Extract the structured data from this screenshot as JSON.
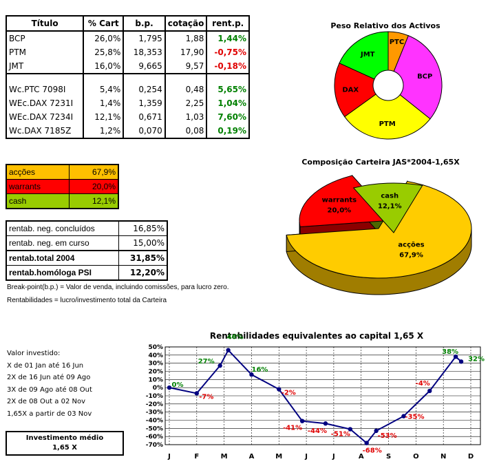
{
  "positions_table": {
    "headers": [
      "Título",
      "% Cart",
      "b.p.",
      "cotação",
      "rent.p."
    ],
    "rows": [
      {
        "titulo": "BCP",
        "cart": "26,0%",
        "bp": "1,795",
        "cot": "1,88",
        "rent": "1,44%",
        "sign": "pos"
      },
      {
        "titulo": "PTM",
        "cart": "25,8%",
        "bp": "18,353",
        "cot": "17,90",
        "rent": "-0,75%",
        "sign": "neg"
      },
      {
        "titulo": "JMT",
        "cart": "16,0%",
        "bp": "9,665",
        "cot": "9,57",
        "rent": "-0,18%",
        "sign": "neg"
      },
      {
        "titulo": "Wc.PTC 7098I",
        "cart": "5,4%",
        "bp": "0,254",
        "cot": "0,48",
        "rent": "5,65%",
        "sign": "pos"
      },
      {
        "titulo": "WEc.DAX 7231I",
        "cart": "1,4%",
        "bp": "1,359",
        "cot": "2,25",
        "rent": "1,04%",
        "sign": "pos"
      },
      {
        "titulo": "WEc.DAX 7234I",
        "cart": "12,1%",
        "bp": "0,671",
        "cot": "1,03",
        "rent": "7,60%",
        "sign": "pos"
      },
      {
        "titulo": "Wc.DAX 7185Z",
        "cart": "1,2%",
        "bp": "0,070",
        "cot": "0,08",
        "rent": "0,19%",
        "sign": "pos"
      }
    ]
  },
  "allocation_table": {
    "rows": [
      {
        "label": "acções",
        "value": "67,9%",
        "color": "#ffc000"
      },
      {
        "label": "warrants",
        "value": "20,0%",
        "color": "#ff0000"
      },
      {
        "label": "cash",
        "value": "12,1%",
        "color": "#99cc00"
      }
    ]
  },
  "returns_table": {
    "rows": [
      {
        "label": "rentab. neg. concluídos",
        "value": "16,85%",
        "bold": false
      },
      {
        "label": "rentab. neg. em curso",
        "value": "15,00%",
        "bold": false
      },
      {
        "label": "rentab.total 2004",
        "value": "31,85%",
        "bold": true
      },
      {
        "label": "rentab.homóloga PSI",
        "value": "12,20%",
        "bold": true
      }
    ]
  },
  "notes": {
    "breakpoint": "Break-point(b.p.) = Valor de venda, incluindo comissões, para lucro zero.",
    "rentabilidades": "Rentabilidades = lucro/investimento total da Carteira"
  },
  "investment_info": {
    "title": "Valor investido:",
    "lines": [
      "X de 01 Jan até 16 Jun",
      "2X de 16 Jun até 09 Ago",
      "3X de 09 Ago até 08 Out",
      "2X de 08 Out a 02 Nov",
      "1,65X a partir de 03 Nov"
    ],
    "box_title": "Investimento médio",
    "box_value": "1,65 X"
  },
  "chart_data": [
    {
      "type": "pie",
      "title": "Peso Relativo dos Activos",
      "donut": true,
      "slices": [
        {
          "label": "PTC",
          "value": 5.4,
          "color": "#ff9900"
        },
        {
          "label": "BCP",
          "value": 26.0,
          "color": "#ff33ff"
        },
        {
          "label": "PTM",
          "value": 25.8,
          "color": "#ffff00"
        },
        {
          "label": "DAX",
          "value": 14.7,
          "color": "#ff0000"
        },
        {
          "label": "JMT",
          "value": 16.0,
          "color": "#00ff00"
        }
      ]
    },
    {
      "type": "pie",
      "title": "Composição Carteira JAS*2004-1,65X",
      "three_d": true,
      "slices": [
        {
          "label": "acções",
          "value": 67.9,
          "display": "67,9%",
          "color": "#ffcc00",
          "side": "#a07d00"
        },
        {
          "label": "warrants",
          "value": 20.0,
          "display": "20,0%",
          "color": "#ff0000",
          "side": "#8b0000"
        },
        {
          "label": "cash",
          "value": 12.1,
          "display": "12,1%",
          "color": "#99cc00",
          "side": "#4d6600"
        }
      ]
    },
    {
      "type": "line",
      "title": "Rentabilidades equivalentes ao capital 1,65 X",
      "x_labels": [
        "J",
        "F",
        "M",
        "A",
        "M",
        "J",
        "J",
        "A",
        "S",
        "O",
        "N",
        "D"
      ],
      "ylim": [
        -70,
        50
      ],
      "y_ticks": [
        50,
        40,
        30,
        20,
        10,
        0,
        -10,
        -20,
        -30,
        -40,
        -50,
        -60,
        -70
      ],
      "series": [
        {
          "name": "rentabilidade",
          "color": "#000080",
          "points": [
            {
              "x": 0,
              "y": 0,
              "label": "0%"
            },
            {
              "x": 1,
              "y": -7,
              "label": "-7%"
            },
            {
              "x": 1.85,
              "y": 27,
              "label": "27%"
            },
            {
              "x": 2.15,
              "y": 46,
              "label": "46%"
            },
            {
              "x": 3,
              "y": 16,
              "label": "16%"
            },
            {
              "x": 4,
              "y": -2,
              "label": "-2%"
            },
            {
              "x": 4.85,
              "y": -41,
              "label": "-41%"
            },
            {
              "x": 5.7,
              "y": -44,
              "label": "-44%"
            },
            {
              "x": 6.6,
              "y": -51,
              "label": "-51%"
            },
            {
              "x": 7.2,
              "y": -68,
              "label": "-68%"
            },
            {
              "x": 7.55,
              "y": -53,
              "label": "-53%"
            },
            {
              "x": 8.55,
              "y": -35,
              "label": "-35%"
            },
            {
              "x": 9.5,
              "y": -4,
              "label": "-4%"
            },
            {
              "x": 10.45,
              "y": 38,
              "label": "38%"
            },
            {
              "x": 10.65,
              "y": 32,
              "label": "32%"
            }
          ]
        }
      ]
    }
  ]
}
